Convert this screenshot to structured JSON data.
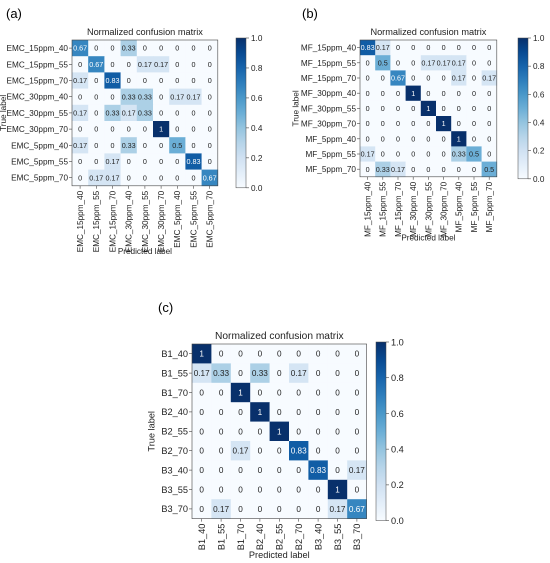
{
  "chart_data": [
    {
      "type": "heatmap",
      "panel_label": "(a)",
      "title": "Normalized confusion matrix",
      "xlabel": "Predicted label",
      "ylabel": "True label",
      "labels": [
        "EMC_15ppm_40",
        "EMC_15ppm_55",
        "EMC_15ppm_70",
        "EMC_30ppm_40",
        "EMC_30ppm_55",
        "EMC_30ppm_70",
        "EMC_5ppm_40",
        "EMC_5ppm_55",
        "EMC_5ppm_70"
      ],
      "matrix": [
        [
          "0.67",
          "0",
          "0",
          "0.33",
          "0",
          "0",
          "0",
          "0",
          "0"
        ],
        [
          "0",
          "0.67",
          "0",
          "0",
          "0.17",
          "0.17",
          "0",
          "0",
          "0"
        ],
        [
          "0.17",
          "0",
          "0.83",
          "0",
          "0",
          "0",
          "0",
          "0",
          "0"
        ],
        [
          "0",
          "0",
          "0",
          "0.33",
          "0.33",
          "0",
          "0.17",
          "0.17",
          "0"
        ],
        [
          "0.17",
          "0",
          "0.33",
          "0.17",
          "0.33",
          "0",
          "0",
          "0",
          "0"
        ],
        [
          "0",
          "0",
          "0",
          "0",
          "0",
          "1",
          "0",
          "0",
          "0"
        ],
        [
          "0.17",
          "0",
          "0",
          "0.33",
          "0",
          "0",
          "0.5",
          "0",
          "0"
        ],
        [
          "0",
          "0",
          "0.17",
          "0",
          "0",
          "0",
          "0",
          "0.83",
          "0"
        ],
        [
          "0",
          "0.17",
          "0.17",
          "0",
          "0",
          "0",
          "0",
          "0",
          "0.67"
        ]
      ],
      "colorbar_ticks": [
        "0.0",
        "0.2",
        "0.4",
        "0.6",
        "0.8",
        "1.0"
      ],
      "vmin": 0,
      "vmax": 1
    },
    {
      "type": "heatmap",
      "panel_label": "(b)",
      "title": "Normalized confusion matrix",
      "xlabel": "Predicted label",
      "ylabel": "True label",
      "labels": [
        "MF_15ppm_40",
        "MF_15ppm_55",
        "MF_15ppm_70",
        "MF_30ppm_40",
        "MF_30ppm_55",
        "MF_30ppm_70",
        "MF_5ppm_40",
        "MF_5ppm_55",
        "MF_5ppm_70"
      ],
      "matrix": [
        [
          "0.83",
          "0.17",
          "0",
          "0",
          "0",
          "0",
          "0",
          "0",
          "0"
        ],
        [
          "0",
          "0.5",
          "0",
          "0",
          "0.17",
          "0.17",
          "0.17",
          "0",
          "0"
        ],
        [
          "0",
          "0",
          "0.67",
          "0",
          "0",
          "0",
          "0.17",
          "0",
          "0.17"
        ],
        [
          "0",
          "0",
          "0",
          "1",
          "0",
          "0",
          "0",
          "0",
          "0"
        ],
        [
          "0",
          "0",
          "0",
          "0",
          "1",
          "0",
          "0",
          "0",
          "0"
        ],
        [
          "0",
          "0",
          "0",
          "0",
          "0",
          "1",
          "0",
          "0",
          "0"
        ],
        [
          "0",
          "0",
          "0",
          "0",
          "0",
          "0",
          "1",
          "0",
          "0"
        ],
        [
          "0.17",
          "0",
          "0",
          "0",
          "0",
          "0",
          "0.33",
          "0.5",
          "0"
        ],
        [
          "0",
          "0.33",
          "0.17",
          "0",
          "0",
          "0",
          "0",
          "0",
          "0.5"
        ]
      ],
      "colorbar_ticks": [
        "0.0",
        "0.2",
        "0.4",
        "0.6",
        "0.8",
        "1.0"
      ],
      "vmin": 0,
      "vmax": 1
    },
    {
      "type": "heatmap",
      "panel_label": "(c)",
      "title": "Normalized confusion matrix",
      "xlabel": "Predicted label",
      "ylabel": "True label",
      "labels": [
        "B1_40",
        "B1_55",
        "B1_70",
        "B2_40",
        "B2_55",
        "B2_70",
        "B3_40",
        "B3_55",
        "B3_70"
      ],
      "matrix": [
        [
          "1",
          "0",
          "0",
          "0",
          "0",
          "0",
          "0",
          "0",
          "0"
        ],
        [
          "0.17",
          "0.33",
          "0",
          "0.33",
          "0",
          "0.17",
          "0",
          "0",
          "0"
        ],
        [
          "0",
          "0",
          "1",
          "0",
          "0",
          "0",
          "0",
          "0",
          "0"
        ],
        [
          "0",
          "0",
          "0",
          "1",
          "0",
          "0",
          "0",
          "0",
          "0"
        ],
        [
          "0",
          "0",
          "0",
          "0",
          "1",
          "0",
          "0",
          "0",
          "0"
        ],
        [
          "0",
          "0",
          "0.17",
          "0",
          "0",
          "0.83",
          "0",
          "0",
          "0"
        ],
        [
          "0",
          "0",
          "0",
          "0",
          "0",
          "0",
          "0.83",
          "0",
          "0.17"
        ],
        [
          "0",
          "0",
          "0",
          "0",
          "0",
          "0",
          "0",
          "1",
          "0"
        ],
        [
          "0",
          "0.17",
          "0",
          "0",
          "0",
          "0",
          "0",
          "0.17",
          "0.67"
        ]
      ],
      "colorbar_ticks": [
        "0.0",
        "0.2",
        "0.4",
        "0.6",
        "0.8",
        "1.0"
      ],
      "vmin": 0,
      "vmax": 1
    }
  ]
}
